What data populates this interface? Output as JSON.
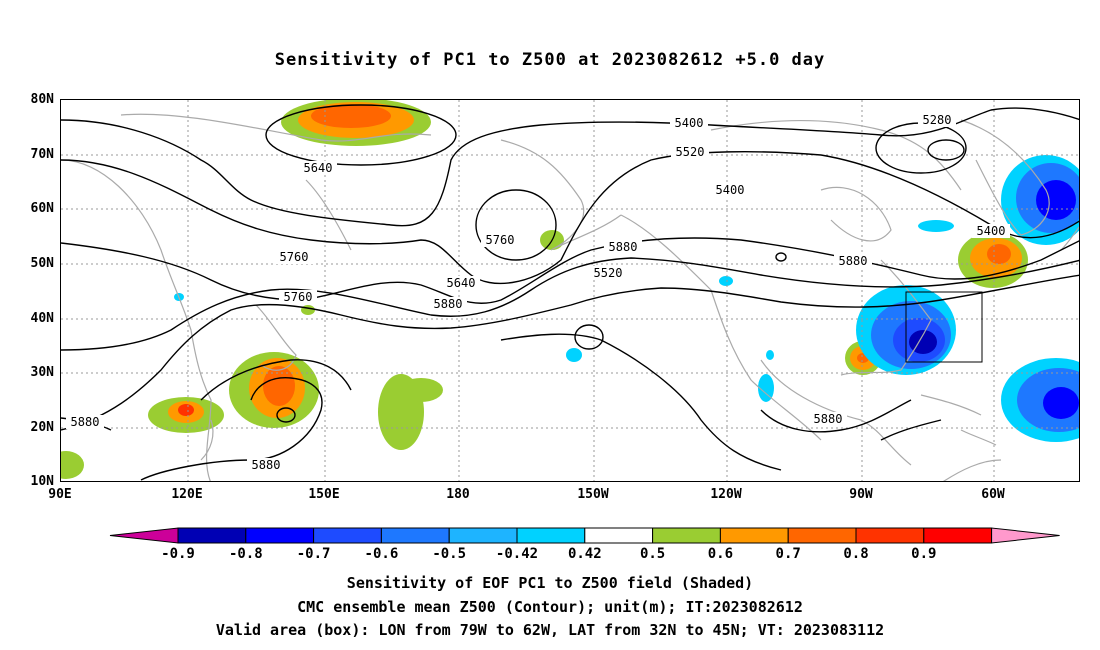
{
  "title": "Sensitivity of PC1 to Z500 at 2023082612 +5.0 day",
  "lat_labels": [
    "80N",
    "70N",
    "60N",
    "50N",
    "40N",
    "30N",
    "20N",
    "10N"
  ],
  "lon_labels": [
    "90E",
    "120E",
    "150E",
    "180",
    "150W",
    "120W",
    "90W",
    "60W"
  ],
  "contour_labels": [
    "5400",
    "5280",
    "5520",
    "5640",
    "5400",
    "5760",
    "5880",
    "5400",
    "5760",
    "5880",
    "5520",
    "5640",
    "5760",
    "5880",
    "5880",
    "5880",
    "5880"
  ],
  "colorbar": {
    "labels": [
      "-0.9",
      "-0.8",
      "-0.7",
      "-0.6",
      "-0.5",
      "-0.42",
      "0.42",
      "0.5",
      "0.6",
      "0.7",
      "0.8",
      "0.9"
    ],
    "colors": [
      "#cc0099",
      "#0000b4",
      "#0000ff",
      "#1e4bff",
      "#1e78ff",
      "#1eb4ff",
      "#00d2ff",
      "#ffffff",
      "#9acd32",
      "#ff9900",
      "#ff6600",
      "#ff3300",
      "#ff0000",
      "#ff99cc"
    ]
  },
  "box_label": "Valid area (box): LON from 79W to 62W, LAT from 32N to 45N; VT: 2023083112",
  "captions": [
    "Sensitivity of EOF PC1 to Z500 field (Shaded)",
    "CMC ensemble mean Z500 (Contour); unit(m); IT:2023082612",
    "Valid area (box): LON from 79W to 62W, LAT from 32N to 45N; VT: 2023083112"
  ]
}
